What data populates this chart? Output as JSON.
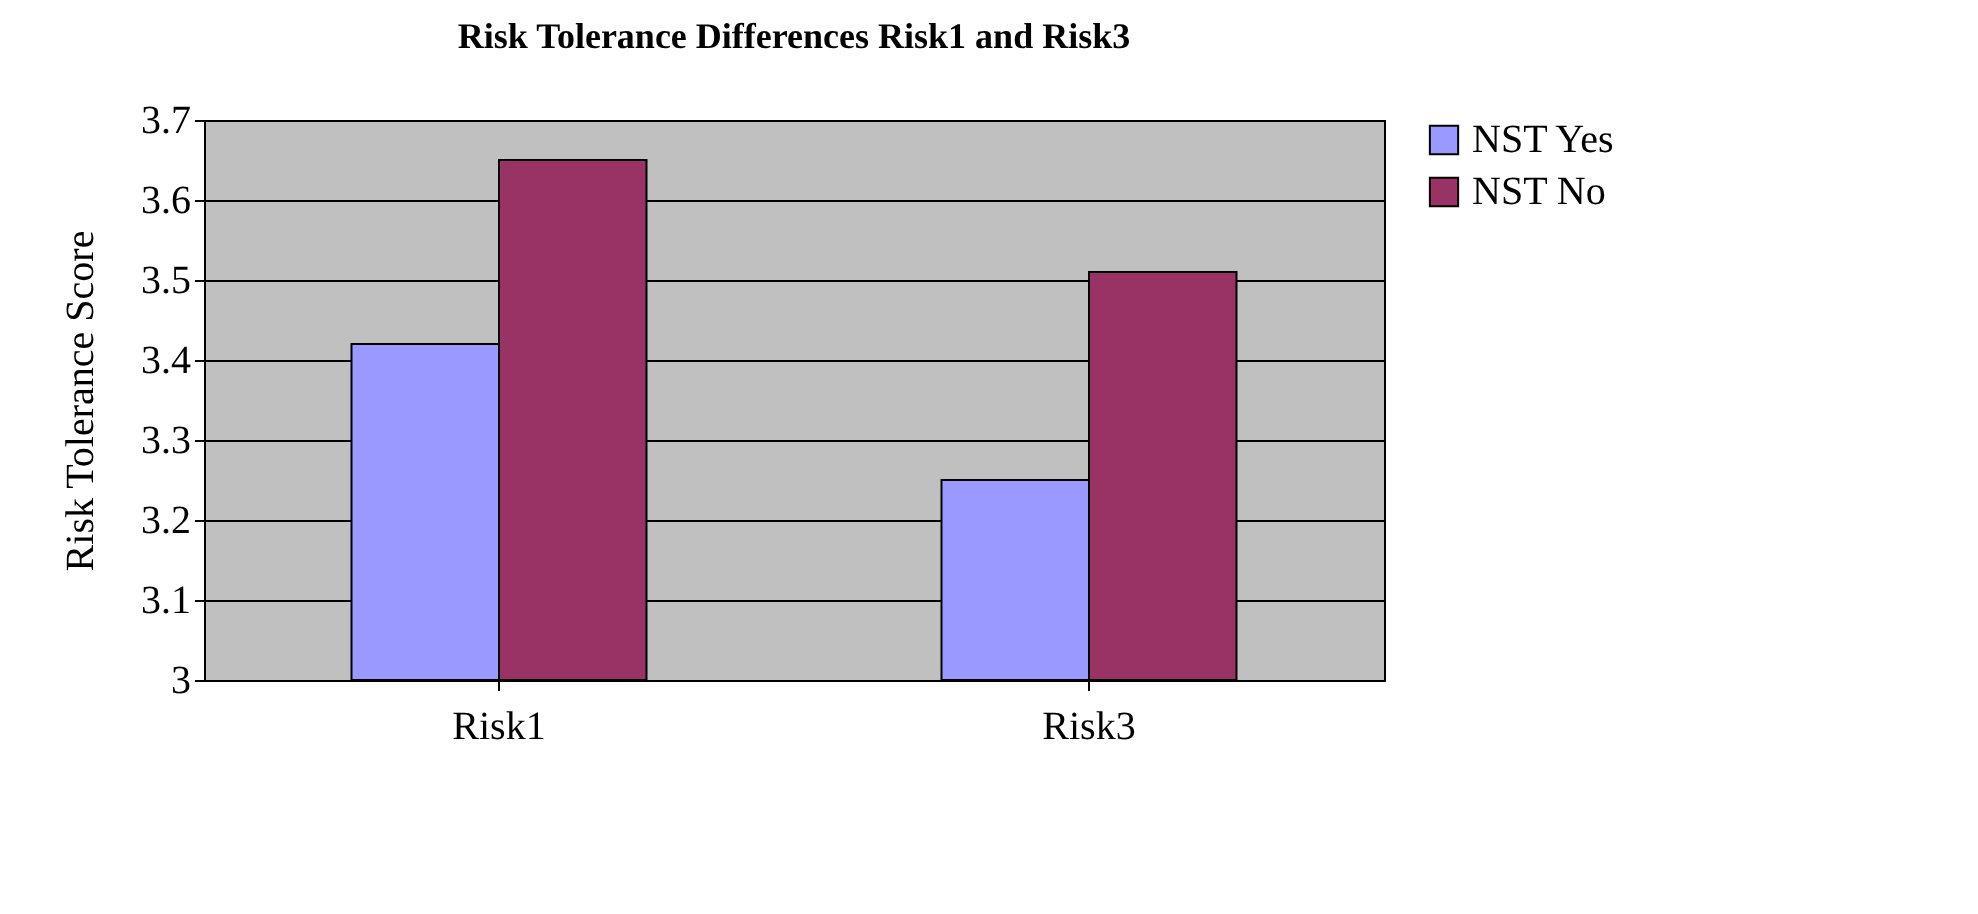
{
  "chart_data": {
    "type": "bar",
    "title": "Risk Tolerance Differences Risk1 and Risk3",
    "ylabel": "Risk Tolerance Score",
    "categories": [
      "Risk1",
      "Risk3"
    ],
    "series": [
      {
        "name": "NST Yes",
        "color": "#9999ff",
        "values": [
          3.42,
          3.25
        ]
      },
      {
        "name": "NST No",
        "color": "#993366",
        "values": [
          3.65,
          3.51
        ]
      }
    ],
    "ylim": [
      3,
      3.7
    ],
    "yticks": [
      3,
      3.1,
      3.2,
      3.3,
      3.4,
      3.5,
      3.6,
      3.7
    ],
    "grid": "y",
    "legend": "right"
  }
}
